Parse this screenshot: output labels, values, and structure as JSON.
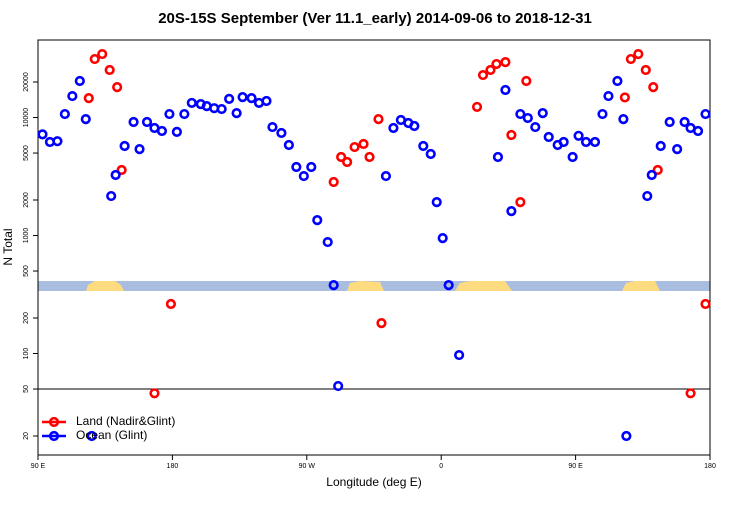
{
  "chart_data": {
    "type": "scatter",
    "title": "20S-15S September (Ver 11.1_early)   2014-09-06 to 2018-12-31",
    "xlabel": "Longitude (deg E)",
    "ylabel": "N Total",
    "log_y": true,
    "legend": "lower left",
    "reference_line": 50,
    "xlim": [
      90,
      540
    ],
    "xticks": [
      {
        "value": 90,
        "label": "90 E"
      },
      {
        "value": 180,
        "label": "180"
      },
      {
        "value": 270,
        "label": "90 W"
      },
      {
        "value": 360,
        "label": "0"
      },
      {
        "value": 450,
        "label": "90 E"
      },
      {
        "value": 540,
        "label": "180"
      }
    ],
    "ylim": [
      13.8,
      45400
    ],
    "yticks": [
      20,
      50,
      100,
      200,
      500,
      1000,
      2000,
      5000,
      10000,
      20000
    ],
    "series": [
      {
        "name": "Land (Nadir&Glint)",
        "color": "#ff0000",
        "x": [
          124,
          128,
          133,
          138,
          143,
          146,
          168,
          179,
          288,
          293,
          297,
          302,
          308,
          312,
          318,
          320,
          384,
          388,
          393,
          397,
          403,
          407,
          413,
          417,
          483,
          487,
          492,
          497,
          502,
          505,
          527,
          537
        ],
        "values": [
          14600,
          31300,
          34500,
          25300,
          18100,
          3590,
          46,
          263,
          2840,
          4630,
          4200,
          5620,
          5970,
          4630,
          9700,
          181,
          12300,
          22900,
          25300,
          28400,
          29500,
          7110,
          1920,
          20400,
          14800,
          31300,
          34500,
          25300,
          18100,
          3590,
          46,
          263
        ]
      },
      {
        "name": "Ocean (Glint)",
        "color": "#0000ff",
        "x": [
          93,
          98,
          103,
          108,
          113,
          118,
          122,
          126,
          139,
          142,
          148,
          154,
          158,
          163,
          168,
          173,
          178,
          183,
          188,
          193,
          199,
          203,
          208,
          213,
          218,
          223,
          227,
          233,
          238,
          243,
          247,
          253,
          258,
          263,
          268,
          273,
          277,
          284,
          288,
          291,
          323,
          328,
          333,
          338,
          342,
          348,
          353,
          357,
          361,
          365,
          372,
          398,
          403,
          407,
          413,
          418,
          423,
          428,
          432,
          438,
          442,
          448,
          452,
          457,
          463,
          468,
          472,
          478,
          482,
          484,
          498,
          501,
          507,
          513,
          518,
          523,
          527,
          532,
          537
        ],
        "values": [
          7200,
          6200,
          6300,
          10700,
          15200,
          20400,
          9700,
          20,
          2160,
          3260,
          5740,
          9160,
          5400,
          9160,
          8150,
          7690,
          10700,
          7560,
          10700,
          13300,
          13000,
          12500,
          12000,
          11800,
          14400,
          10900,
          14900,
          14600,
          13300,
          13800,
          8300,
          7400,
          5850,
          3810,
          3190,
          3810,
          1350,
          880,
          380,
          53,
          3190,
          8150,
          9530,
          8990,
          8480,
          5740,
          4910,
          1920,
          950,
          380,
          97,
          4630,
          17100,
          1610,
          10700,
          9900,
          8300,
          10900,
          6840,
          5850,
          6200,
          4630,
          7000,
          6200,
          6200,
          10700,
          15200,
          20400,
          9700,
          20,
          2160,
          3260,
          5740,
          9160,
          5400,
          9160,
          8150,
          7690,
          10700
        ]
      }
    ]
  }
}
